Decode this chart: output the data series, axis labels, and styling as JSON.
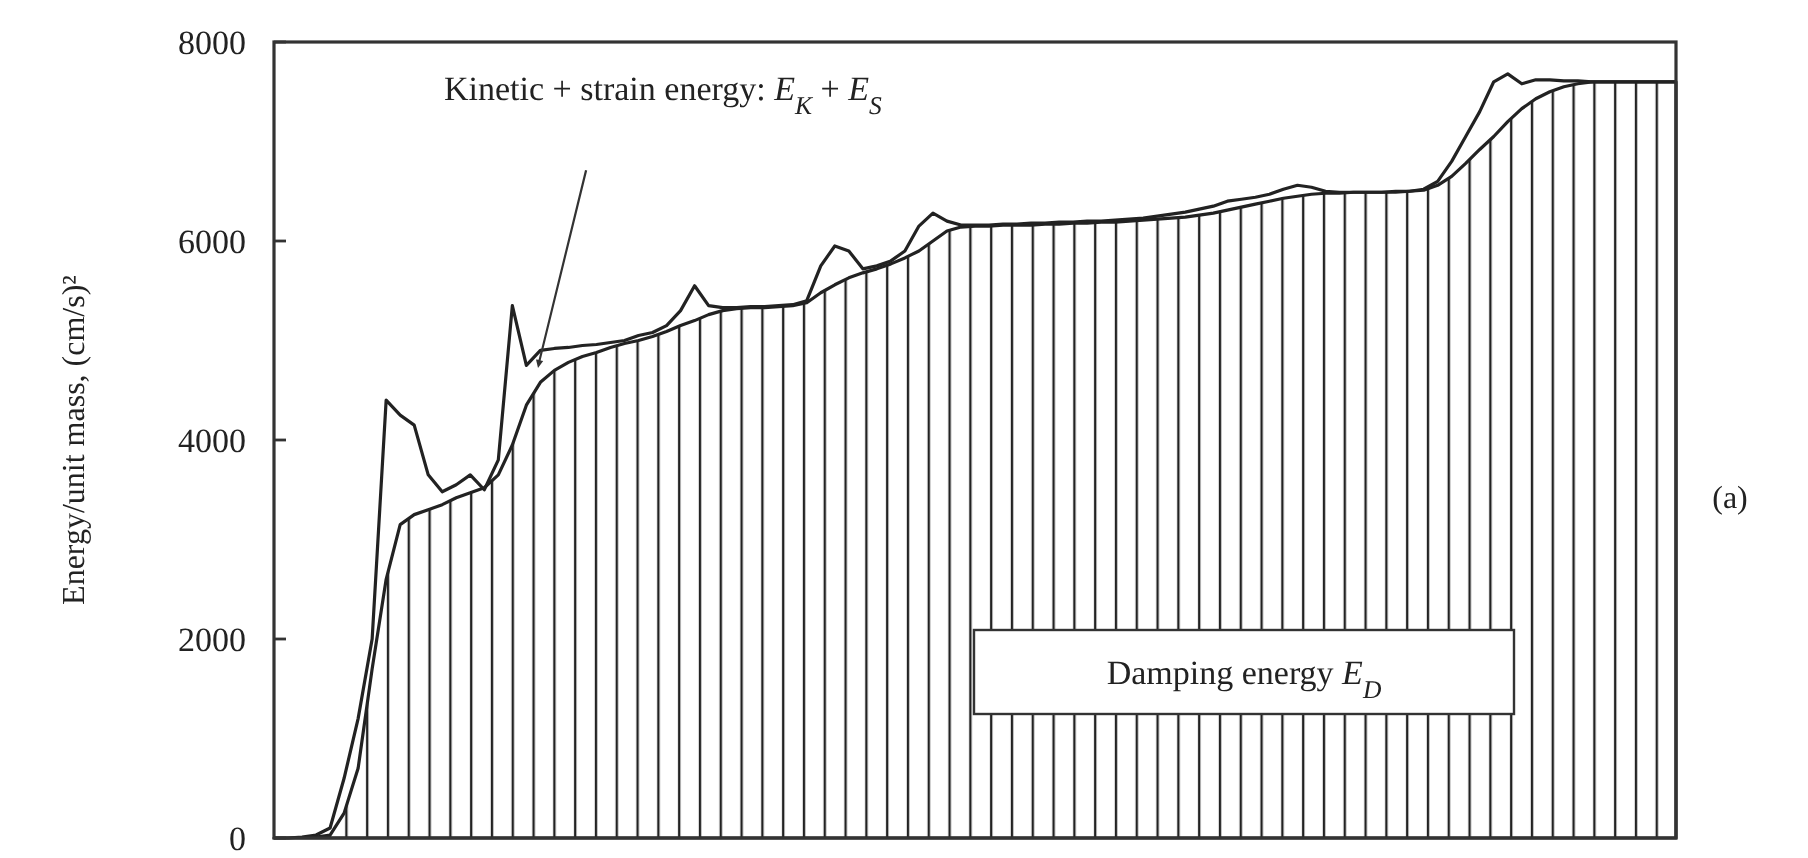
{
  "chart_data": {
    "type": "line",
    "ylabel": "Energy/unit mass, (cm/s)²",
    "categories": [
      null,
      null,
      null,
      null,
      null,
      null,
      null,
      null,
      null,
      null,
      null,
      null,
      null,
      null,
      null,
      null,
      null,
      null,
      null,
      null,
      null,
      null,
      null,
      null,
      null,
      null,
      null,
      null,
      null,
      null,
      null,
      null,
      null,
      null,
      null,
      null,
      null,
      null,
      null,
      null,
      null,
      null,
      null,
      null,
      null,
      null,
      null,
      null,
      null,
      null,
      null,
      null,
      null,
      null,
      null,
      null,
      null,
      null,
      null,
      null,
      null,
      null,
      null,
      null,
      null,
      null,
      null,
      null,
      null,
      null,
      null,
      null,
      null,
      null,
      null,
      null,
      null,
      null,
      null,
      null,
      null,
      null,
      null,
      null,
      null,
      null,
      null,
      null,
      null,
      null,
      null,
      null,
      null,
      null,
      null,
      null,
      null,
      null,
      null,
      null,
      null
    ],
    "ylim": [
      0,
      8000
    ],
    "yticks": [
      0,
      2000,
      4000,
      6000,
      8000
    ],
    "grid": false,
    "legend": false,
    "series": [
      {
        "type": "area",
        "name": "Damping energy E$_{D}$",
        "color": "#222222",
        "values": [
          0,
          0,
          0,
          10,
          30,
          250,
          700,
          1700,
          2600,
          3150,
          3250,
          3300,
          3350,
          3420,
          3470,
          3520,
          3650,
          3950,
          4350,
          4580,
          4700,
          4780,
          4840,
          4880,
          4930,
          4970,
          5000,
          5040,
          5090,
          5150,
          5200,
          5260,
          5300,
          5320,
          5330,
          5330,
          5340,
          5350,
          5380,
          5480,
          5560,
          5630,
          5680,
          5720,
          5770,
          5830,
          5900,
          6000,
          6100,
          6140,
          6150,
          6150,
          6160,
          6160,
          6160,
          6170,
          6170,
          6180,
          6180,
          6190,
          6190,
          6200,
          6210,
          6220,
          6230,
          6240,
          6260,
          6280,
          6310,
          6340,
          6370,
          6400,
          6430,
          6450,
          6470,
          6480,
          6480,
          6490,
          6490,
          6490,
          6490,
          6500,
          6510,
          6560,
          6650,
          6780,
          6920,
          7050,
          7200,
          7330,
          7430,
          7500,
          7550,
          7580,
          7600,
          7600,
          7600,
          7600,
          7600,
          7600,
          7600
        ]
      },
      {
        "color": "#222222",
        "values": [
          0,
          0,
          10,
          30,
          100,
          600,
          1200,
          2000,
          4400,
          4250,
          4150,
          3650,
          3480,
          3550,
          3650,
          3500,
          3800,
          5350,
          4750,
          4900,
          4920,
          4930,
          4950,
          4960,
          4980,
          5000,
          5050,
          5080,
          5150,
          5300,
          5550,
          5350,
          5330,
          5330,
          5340,
          5340,
          5350,
          5360,
          5400,
          5750,
          5950,
          5900,
          5720,
          5750,
          5800,
          5900,
          6150,
          6280,
          6200,
          6160,
          6160,
          6160,
          6170,
          6170,
          6180,
          6180,
          6190,
          6190,
          6200,
          6200,
          6210,
          6220,
          6230,
          6250,
          6270,
          6290,
          6320,
          6350,
          6400,
          6420,
          6440,
          6470,
          6520,
          6560,
          6540,
          6500,
          6490,
          6490,
          6490,
          6490,
          6500,
          6500,
          6520,
          6600,
          6800,
          7050,
          7300,
          7600,
          7680,
          7580,
          7620,
          7620,
          7610,
          7610,
          7600,
          7600,
          7600,
          7600,
          7600,
          7600,
          7600
        ]
      }
    ],
    "annotations": [
      "Kinetic + strain energy: E$_{K}$ + E$_{S}$",
      "(a)"
    ]
  }
}
